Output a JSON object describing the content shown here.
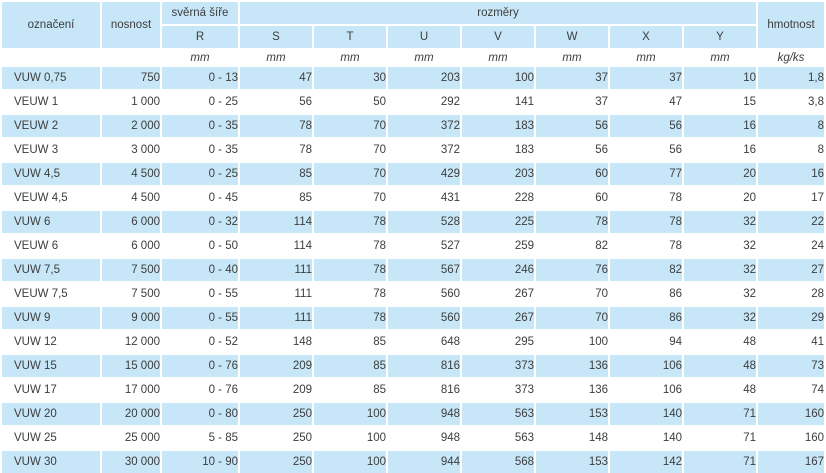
{
  "table": {
    "headers": {
      "oznaceni": "označení",
      "nosnost": "nosnost",
      "sverna_sire": "svěrná šíře",
      "rozmery": "rozměry",
      "hmotnost": "hmotnost",
      "sub": [
        "R",
        "S",
        "T",
        "U",
        "V",
        "W",
        "X",
        "Y"
      ]
    },
    "units": {
      "mm": "mm",
      "kg_ks": "kg/ks"
    },
    "rows": [
      [
        "VUW 0,75",
        "750",
        "0 - 13",
        "47",
        "30",
        "203",
        "100",
        "37",
        "37",
        "10",
        "1,8"
      ],
      [
        "VEUW 1",
        "1 000",
        "0 - 25",
        "56",
        "50",
        "292",
        "141",
        "37",
        "47",
        "15",
        "3,8"
      ],
      [
        "VEUW 2",
        "2 000",
        "0 - 35",
        "78",
        "70",
        "372",
        "183",
        "56",
        "56",
        "16",
        "8"
      ],
      [
        "VEUW 3",
        "3 000",
        "0 - 35",
        "78",
        "70",
        "372",
        "183",
        "56",
        "56",
        "16",
        "8"
      ],
      [
        "VUW 4,5",
        "4 500",
        "0 - 25",
        "85",
        "70",
        "429",
        "203",
        "60",
        "77",
        "20",
        "16"
      ],
      [
        "VEUW 4,5",
        "4 500",
        "0 - 45",
        "85",
        "70",
        "431",
        "228",
        "60",
        "78",
        "20",
        "17"
      ],
      [
        "VUW 6",
        "6 000",
        "0 - 32",
        "114",
        "78",
        "528",
        "225",
        "78",
        "78",
        "32",
        "22"
      ],
      [
        "VEUW 6",
        "6 000",
        "0 - 50",
        "114",
        "78",
        "527",
        "259",
        "82",
        "78",
        "32",
        "24"
      ],
      [
        "VUW 7,5",
        "7 500",
        "0 - 40",
        "111",
        "78",
        "567",
        "246",
        "76",
        "82",
        "32",
        "27"
      ],
      [
        "VEUW 7,5",
        "7 500",
        "0 - 55",
        "111",
        "78",
        "560",
        "267",
        "70",
        "86",
        "32",
        "28"
      ],
      [
        "VUW 9",
        "9 000",
        "0 - 55",
        "111",
        "78",
        "560",
        "267",
        "70",
        "86",
        "32",
        "29"
      ],
      [
        "VUW 12",
        "12 000",
        "0 - 52",
        "148",
        "85",
        "648",
        "295",
        "100",
        "94",
        "48",
        "41"
      ],
      [
        "VUW 15",
        "15 000",
        "0 - 76",
        "209",
        "85",
        "816",
        "373",
        "136",
        "106",
        "48",
        "73"
      ],
      [
        "VUW 17",
        "17 000",
        "0 - 76",
        "209",
        "85",
        "816",
        "373",
        "136",
        "106",
        "48",
        "74"
      ],
      [
        "VUW 20",
        "20 000",
        "0 - 80",
        "250",
        "100",
        "948",
        "563",
        "153",
        "140",
        "71",
        "160"
      ],
      [
        "VUW 25",
        "25 000",
        "5 - 85",
        "250",
        "100",
        "948",
        "563",
        "148",
        "140",
        "71",
        "160"
      ],
      [
        "VUW 30",
        "30 000",
        "10 - 90",
        "250",
        "100",
        "944",
        "568",
        "153",
        "142",
        "71",
        "167"
      ]
    ]
  },
  "colors": {
    "row_blue": "#c7e7f9",
    "text": "#3d3d3d",
    "background": "#ffffff"
  }
}
